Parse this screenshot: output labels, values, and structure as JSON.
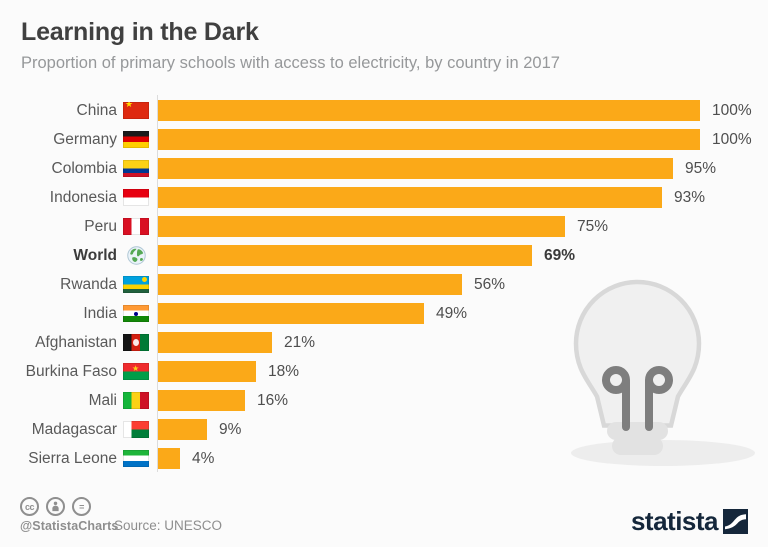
{
  "header": {
    "title": "Learning in the Dark",
    "subtitle": "Proportion of primary schools with access to electricity, by country in 2017"
  },
  "chart_data": {
    "type": "bar",
    "orientation": "horizontal",
    "title": "Learning in the Dark",
    "subtitle": "Proportion of primary schools with access to electricity, by country in 2017",
    "xlabel": "",
    "ylabel": "",
    "xlim": [
      0,
      100
    ],
    "unit": "%",
    "grid": false,
    "bar_color": "#fba918",
    "categories": [
      "China",
      "Germany",
      "Colombia",
      "Indonesia",
      "Peru",
      "World",
      "Rwanda",
      "India",
      "Afghanistan",
      "Burkina Faso",
      "Mali",
      "Madagascar",
      "Sierra Leone"
    ],
    "values": [
      100,
      100,
      95,
      93,
      75,
      69,
      56,
      49,
      21,
      18,
      16,
      9,
      4
    ],
    "data_labels": [
      "100%",
      "100%",
      "95%",
      "93%",
      "75%",
      "69%",
      "56%",
      "49%",
      "21%",
      "18%",
      "16%",
      "9%",
      "4%"
    ],
    "flags": [
      "china",
      "germany",
      "colombia",
      "indonesia",
      "peru",
      "world",
      "rwanda",
      "india",
      "afghanistan",
      "burkina-faso",
      "mali",
      "madagascar",
      "sierra-leone"
    ],
    "bold_rows": [
      "World"
    ]
  },
  "decor": {
    "bulb_icon": "light-bulb-icon",
    "bulb_fill": "#f0f0f0",
    "bulb_stroke": "#d8d8d8",
    "filament_color": "#7e7e7e"
  },
  "footer": {
    "cc_icons": [
      "cc-icon",
      "attribution-person-icon",
      "equal-icon"
    ],
    "cc_label": "cc",
    "equal_label": "=",
    "credit": "@StatistaCharts",
    "source": "Source: UNESCO",
    "brand": "statista",
    "brand_color": "#15273b"
  }
}
